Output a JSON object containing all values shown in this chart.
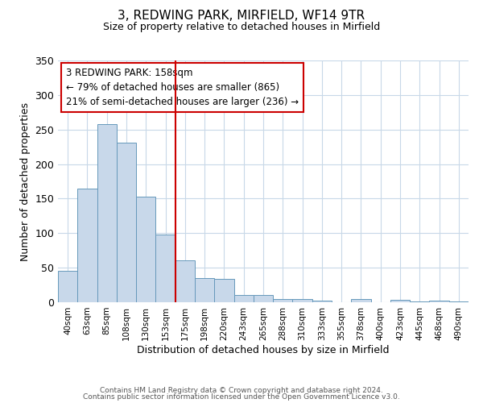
{
  "title": "3, REDWING PARK, MIRFIELD, WF14 9TR",
  "subtitle": "Size of property relative to detached houses in Mirfield",
  "xlabel": "Distribution of detached houses by size in Mirfield",
  "ylabel": "Number of detached properties",
  "bar_color": "#c8d8ea",
  "bar_edge_color": "#6699bb",
  "categories": [
    "40sqm",
    "63sqm",
    "85sqm",
    "108sqm",
    "130sqm",
    "153sqm",
    "175sqm",
    "198sqm",
    "220sqm",
    "243sqm",
    "265sqm",
    "288sqm",
    "310sqm",
    "333sqm",
    "355sqm",
    "378sqm",
    "400sqm",
    "423sqm",
    "445sqm",
    "468sqm",
    "490sqm"
  ],
  "values": [
    45,
    165,
    258,
    231,
    153,
    98,
    61,
    35,
    34,
    11,
    10,
    5,
    5,
    2,
    0,
    5,
    0,
    4,
    1,
    2,
    1
  ],
  "vline_x": 5.5,
  "vline_color": "#cc0000",
  "ylim": [
    0,
    350
  ],
  "yticks": [
    0,
    50,
    100,
    150,
    200,
    250,
    300,
    350
  ],
  "annotation_text": "3 REDWING PARK: 158sqm\n← 79% of detached houses are smaller (865)\n21% of semi-detached houses are larger (236) →",
  "annotation_box_color": "#ffffff",
  "annotation_box_edge_color": "#cc0000",
  "footer1": "Contains HM Land Registry data © Crown copyright and database right 2024.",
  "footer2": "Contains public sector information licensed under the Open Government Licence v3.0.",
  "background_color": "#ffffff",
  "grid_color": "#c8d8e8"
}
